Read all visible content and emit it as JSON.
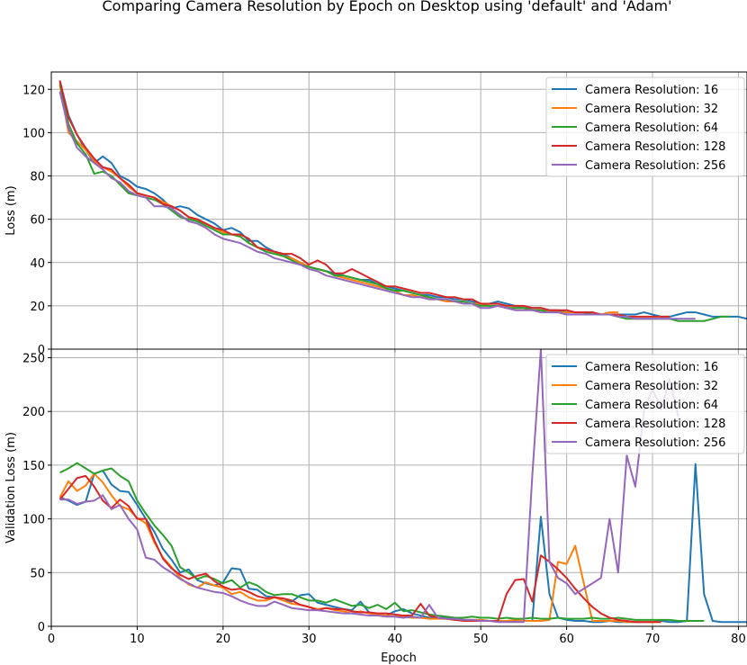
{
  "chart_data": {
    "type": "line",
    "title": "Comparing Camera Resolution by Epoch on Desktop using 'default' and 'Adam'",
    "xlabel": "Epoch",
    "xlim": [
      0,
      81
    ],
    "xticks": [
      0,
      10,
      20,
      30,
      40,
      50,
      60,
      70,
      80
    ],
    "legend_placement": "top-right",
    "grid": true,
    "panels": [
      {
        "name": "loss",
        "ylabel": "Loss (m)",
        "ylim": [
          0,
          128
        ],
        "yticks": [
          0,
          20,
          40,
          60,
          80,
          100,
          120
        ],
        "series": [
          {
            "name": "Camera Resolution: 16",
            "color": "#1f77b4",
            "values": [
              124,
              108,
              99,
              92,
              86,
              89,
              86,
              80,
              78,
              75,
              74,
              72,
              69,
              65,
              66,
              65,
              62,
              60,
              58,
              55,
              56,
              54,
              50,
              50,
              47,
              45,
              44,
              42,
              40,
              38,
              37,
              36,
              35,
              34,
              33,
              32,
              32,
              30,
              29,
              28,
              27,
              26,
              25,
              25,
              24,
              24,
              23,
              23,
              22,
              21,
              21,
              22,
              21,
              20,
              19,
              19,
              19,
              18,
              18,
              17,
              17,
              17,
              17,
              16,
              16,
              16,
              16,
              16,
              17,
              16,
              15,
              15,
              16,
              17,
              17,
              16,
              15,
              15,
              15,
              15,
              14,
              15
            ]
          },
          {
            "name": "Camera Resolution: 32",
            "color": "#ff7f0e",
            "values": [
              122,
              100,
              96,
              92,
              87,
              84,
              82,
              79,
              75,
              72,
              71,
              70,
              68,
              66,
              64,
              61,
              59,
              58,
              56,
              54,
              53,
              52,
              49,
              47,
              46,
              45,
              43,
              42,
              40,
              38,
              37,
              36,
              34,
              33,
              32,
              31,
              30,
              29,
              28,
              27,
              25,
              25,
              24,
              24,
              23,
              22,
              22,
              22,
              21,
              21,
              20,
              20,
              19,
              19,
              19,
              18,
              18,
              18,
              17,
              17,
              17,
              17,
              16,
              16,
              17,
              17
            ]
          },
          {
            "name": "Camera Resolution: 64",
            "color": "#2ca02c",
            "values": [
              123,
              104,
              95,
              90,
              81,
              82,
              80,
              76,
              72,
              71,
              70,
              69,
              67,
              64,
              61,
              60,
              59,
              57,
              55,
              53,
              53,
              52,
              49,
              47,
              45,
              44,
              43,
              41,
              39,
              38,
              37,
              36,
              34,
              34,
              33,
              32,
              31,
              30,
              28,
              27,
              27,
              26,
              25,
              24,
              23,
              23,
              22,
              22,
              21,
              20,
              20,
              20,
              19,
              19,
              19,
              18,
              18,
              17,
              17,
              16,
              16,
              16,
              17,
              16,
              16,
              15,
              14,
              14,
              14,
              14,
              14,
              14,
              13,
              13,
              13,
              13,
              14,
              15,
              15
            ]
          },
          {
            "name": "Camera Resolution: 128",
            "color": "#d62728",
            "values": [
              124,
              107,
              99,
              93,
              88,
              84,
              83,
              79,
              76,
              72,
              71,
              70,
              67,
              66,
              64,
              61,
              60,
              58,
              56,
              55,
              53,
              53,
              51,
              47,
              46,
              45,
              44,
              44,
              42,
              39,
              41,
              39,
              35,
              35,
              37,
              35,
              33,
              31,
              29,
              29,
              28,
              27,
              26,
              26,
              25,
              24,
              24,
              23,
              23,
              21,
              21,
              21,
              20,
              20,
              20,
              19,
              19,
              18,
              18,
              18,
              17,
              17,
              17,
              16,
              16,
              16,
              15,
              15,
              15,
              15,
              15,
              15
            ]
          },
          {
            "name": "Camera Resolution: 256",
            "color": "#9467bd",
            "values": [
              119,
              102,
              93,
              89,
              86,
              83,
              79,
              77,
              73,
              71,
              70,
              66,
              66,
              65,
              62,
              59,
              58,
              56,
              53,
              51,
              50,
              49,
              47,
              45,
              44,
              42,
              41,
              40,
              39,
              37,
              36,
              34,
              33,
              32,
              31,
              30,
              29,
              28,
              27,
              26,
              25,
              24,
              24,
              23,
              23,
              23,
              22,
              21,
              21,
              19,
              19,
              20,
              19,
              18,
              18,
              18,
              17,
              17,
              17,
              16,
              16,
              16,
              16,
              16,
              16,
              15,
              15,
              14,
              14,
              14,
              14,
              14,
              14,
              14,
              14
            ]
          }
        ]
      },
      {
        "name": "validation",
        "ylabel": "Validation Loss (m)",
        "ylim": [
          0,
          258
        ],
        "yticks": [
          0,
          50,
          100,
          150,
          200,
          250
        ],
        "series": [
          {
            "name": "Camera Resolution: 16",
            "color": "#1f77b4",
            "values": [
              120,
              117,
              113,
              116,
              142,
              145,
              132,
              126,
              125,
              113,
              100,
              88,
              72,
              62,
              50,
              53,
              43,
              40,
              38,
              41,
              54,
              53,
              35,
              34,
              28,
              27,
              24,
              23,
              29,
              30,
              22,
              20,
              18,
              16,
              15,
              23,
              13,
              11,
              10,
              14,
              16,
              12,
              10,
              8,
              8,
              8,
              7,
              6,
              6,
              6,
              5,
              5,
              5,
              5,
              5,
              5,
              102,
              30,
              8,
              6,
              5,
              5,
              4,
              4,
              5,
              4,
              4,
              4,
              4,
              4,
              5,
              4,
              4,
              5,
              151,
              30,
              5,
              4,
              4,
              4,
              4,
              4
            ]
          },
          {
            "name": "Camera Resolution: 32",
            "color": "#ff7f0e",
            "values": [
              120,
              135,
              126,
              131,
              142,
              134,
              122,
              112,
              109,
              101,
              96,
              78,
              64,
              55,
              45,
              39,
              36,
              41,
              38,
              36,
              30,
              32,
              27,
              24,
              24,
              27,
              24,
              21,
              20,
              18,
              16,
              17,
              15,
              14,
              12,
              14,
              12,
              11,
              10,
              9,
              9,
              8,
              8,
              7,
              7,
              7,
              6,
              6,
              6,
              6,
              5,
              5,
              5,
              6,
              5,
              5,
              5,
              6,
              60,
              58,
              75,
              40,
              5,
              5,
              5,
              5,
              4,
              4,
              4,
              4,
              4
            ]
          },
          {
            "name": "Camera Resolution: 64",
            "color": "#2ca02c",
            "values": [
              143,
              147,
              152,
              147,
              142,
              145,
              147,
              140,
              135,
              117,
              105,
              94,
              85,
              75,
              55,
              50,
              44,
              47,
              44,
              40,
              43,
              36,
              41,
              38,
              32,
              29,
              30,
              30,
              27,
              24,
              24,
              22,
              25,
              22,
              19,
              20,
              17,
              20,
              16,
              22,
              14,
              15,
              13,
              11,
              10,
              9,
              8,
              8,
              9,
              8,
              8,
              7,
              8,
              7,
              7,
              8,
              7,
              7,
              8,
              7,
              7,
              7,
              8,
              7,
              7,
              8,
              7,
              6,
              6,
              6,
              6,
              6,
              5,
              5,
              5,
              5
            ]
          },
          {
            "name": "Camera Resolution: 128",
            "color": "#d62728",
            "values": [
              118,
              128,
              138,
              140,
              130,
              117,
              110,
              118,
              112,
              100,
              100,
              80,
              63,
              54,
              48,
              44,
              47,
              49,
              42,
              37,
              34,
              35,
              32,
              28,
              26,
              27,
              26,
              24,
              20,
              18,
              15,
              17,
              16,
              16,
              14,
              13,
              13,
              12,
              12,
              11,
              10,
              10,
              21,
              10,
              8,
              7,
              6,
              5,
              5,
              5,
              5,
              5,
              30,
              43,
              44,
              23,
              66,
              60,
              53,
              45,
              35,
              26,
              18,
              12,
              8,
              6,
              5,
              4,
              4,
              4,
              4
            ]
          },
          {
            "name": "Camera Resolution: 256",
            "color": "#9467bd",
            "values": [
              118,
              118,
              114,
              116,
              117,
              122,
              109,
              113,
              100,
              90,
              64,
              62,
              55,
              50,
              44,
              40,
              36,
              34,
              32,
              31,
              28,
              24,
              21,
              19,
              19,
              23,
              20,
              17,
              16,
              15,
              15,
              14,
              13,
              12,
              12,
              11,
              10,
              10,
              9,
              9,
              8,
              9,
              8,
              20,
              8,
              7,
              7,
              6,
              6,
              5,
              5,
              4,
              4,
              4,
              4,
              140,
              258,
              60,
              45,
              40,
              30,
              35,
              40,
              45,
              100,
              50,
              159,
              130,
              200,
              221,
              202,
              230,
              195
            ]
          }
        ]
      }
    ]
  }
}
